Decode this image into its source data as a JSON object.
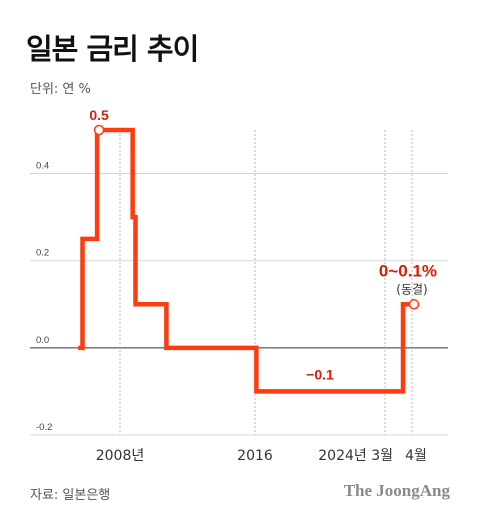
{
  "header": {
    "title": "일본 금리 추이",
    "unit": "단위: 연 %"
  },
  "footer": {
    "source": "자료: 일본은행",
    "brand": "The JoongAng"
  },
  "colors": {
    "line": "#ff3b0f",
    "accent_text": "#d81e06",
    "grid": "#cccccc",
    "zero_line": "#333333"
  },
  "chart_data": {
    "type": "line",
    "title": "일본 금리 추이",
    "ylabel": "",
    "xlabel": "",
    "ylim": [
      -0.2,
      0.5
    ],
    "y_ticks": [
      -0.2,
      0.0,
      0.2,
      0.4
    ],
    "y_tick_labels": [
      "-0.2",
      "0.0",
      "0.2",
      "0.4"
    ],
    "x_tick_labels": [
      "2008년",
      "2016",
      "2024년 3월",
      "4월"
    ],
    "grid": true,
    "series": [
      {
        "step": true,
        "x": [
          "2006-06",
          "2006-07",
          "2007-02",
          "2008-10",
          "2008-12",
          "2010-10",
          "2016-02",
          "2024-03",
          "2024-04"
        ],
        "values": [
          0.0,
          0.25,
          0.5,
          0.3,
          0.1,
          0.0,
          -0.1,
          0.1,
          0.1
        ],
        "x_end": "2024-04"
      }
    ],
    "annotations": [
      {
        "text": "0.5",
        "x": "2007-02",
        "y": 0.5
      },
      {
        "text": "−0.1",
        "x": "2016-02",
        "y": -0.1
      },
      {
        "text": "0~0.1%",
        "x": "2024-04",
        "y": 0.1
      },
      {
        "text": "(동결)",
        "x": "2024-04",
        "y": 0.1
      }
    ]
  }
}
